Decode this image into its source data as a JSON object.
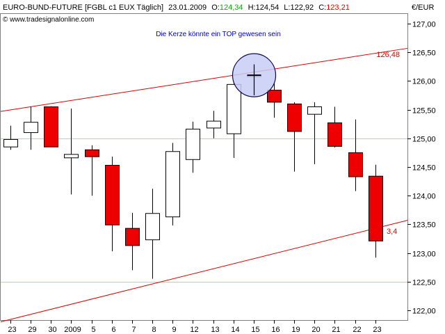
{
  "header": {
    "instrument": "EURO-BUND-FUTURE [FGBL c1 EUX  Täglich]",
    "date": "23.01.2009",
    "open_label": "O:",
    "open_value": "124,34",
    "high_text": "H:124,54",
    "low_text": "L:122,92",
    "close_label": "C:",
    "close_value": "123,21",
    "copyright": "© www.tradesignalonline.com",
    "annotation": "Die Kerze könnte ein TOP gewesen sein",
    "currency": "€/EUR"
  },
  "colors": {
    "bull_fill": "#ffffff",
    "bear_fill": "#ee0000",
    "trendline": "#dd0000",
    "grid": "#b7d4b0",
    "open_value": "#00aa00",
    "close_value": "#dd0000",
    "annotation": "#0000cc",
    "circle_fill": "#c8cdf5",
    "circle_stroke": "#0a0a50"
  },
  "chart_data": {
    "type": "candlestick",
    "categories": [
      "23",
      "29",
      "30",
      "2009",
      "5",
      "6",
      "7",
      "8",
      "9",
      "12",
      "13",
      "14",
      "15",
      "16",
      "19",
      "20",
      "21",
      "22",
      "23"
    ],
    "ylim": [
      121.75,
      127.1
    ],
    "yticks": [
      "127,00",
      "126,50",
      "126,00",
      "125,50",
      "125,00",
      "124,50",
      "124,00",
      "123,50",
      "123,00",
      "122,50",
      "122,00"
    ],
    "ytick_values": [
      127.0,
      126.5,
      126.0,
      125.5,
      125.0,
      124.5,
      124.0,
      123.5,
      123.0,
      122.5,
      122.0
    ],
    "grid_y": [
      125.0,
      122.5
    ],
    "candles": [
      {
        "x": "23",
        "open": 124.85,
        "high": 125.22,
        "low": 124.8,
        "close": 124.98
      },
      {
        "x": "29",
        "open": 125.1,
        "high": 125.55,
        "low": 124.8,
        "close": 125.28
      },
      {
        "x": "30",
        "open": 125.55,
        "high": 125.56,
        "low": 124.85,
        "close": 124.85
      },
      {
        "x": "2009",
        "open": 124.66,
        "high": 125.52,
        "low": 124.02,
        "close": 124.72
      },
      {
        "x": "5",
        "open": 124.8,
        "high": 124.88,
        "low": 124.0,
        "close": 124.68
      },
      {
        "x": "6",
        "open": 124.53,
        "high": 124.68,
        "low": 123.03,
        "close": 123.49
      },
      {
        "x": "7",
        "open": 123.43,
        "high": 123.7,
        "low": 122.7,
        "close": 123.13
      },
      {
        "x": "8",
        "open": 123.23,
        "high": 124.12,
        "low": 122.55,
        "close": 123.69
      },
      {
        "x": "9",
        "open": 123.63,
        "high": 124.92,
        "low": 123.48,
        "close": 124.77
      },
      {
        "x": "12",
        "open": 124.63,
        "high": 125.29,
        "low": 124.4,
        "close": 125.16
      },
      {
        "x": "13",
        "open": 125.18,
        "high": 125.48,
        "low": 125.0,
        "close": 125.3
      },
      {
        "x": "14",
        "open": 125.08,
        "high": 126.0,
        "low": 124.66,
        "close": 125.94
      },
      {
        "x": "15",
        "open": 126.1,
        "high": 126.29,
        "low": 125.75,
        "close": 126.1
      },
      {
        "x": "16",
        "open": 125.84,
        "high": 125.96,
        "low": 125.36,
        "close": 125.63
      },
      {
        "x": "19",
        "open": 125.6,
        "high": 125.63,
        "low": 124.42,
        "close": 125.12
      },
      {
        "x": "20",
        "open": 125.42,
        "high": 125.63,
        "low": 124.55,
        "close": 125.55
      },
      {
        "x": "21",
        "open": 125.27,
        "high": 125.55,
        "low": 124.84,
        "close": 124.86
      },
      {
        "x": "22",
        "open": 124.75,
        "high": 125.33,
        "low": 124.08,
        "close": 124.33
      },
      {
        "x": "23",
        "open": 124.34,
        "high": 124.54,
        "low": 122.92,
        "close": 123.21
      }
    ],
    "trendlines": [
      {
        "label": "126,48",
        "start": {
          "x": "23",
          "value": 125.47
        },
        "end": {
          "x": "23",
          "value": 126.57
        }
      },
      {
        "label": "3,4",
        "start": {
          "x": "23",
          "value": 121.8
        },
        "end": {
          "x": "23",
          "value": 123.57
        }
      }
    ],
    "highlight_candle": "15",
    "annotation_text": "Die Kerze könnte ein TOP gewesen sein"
  }
}
